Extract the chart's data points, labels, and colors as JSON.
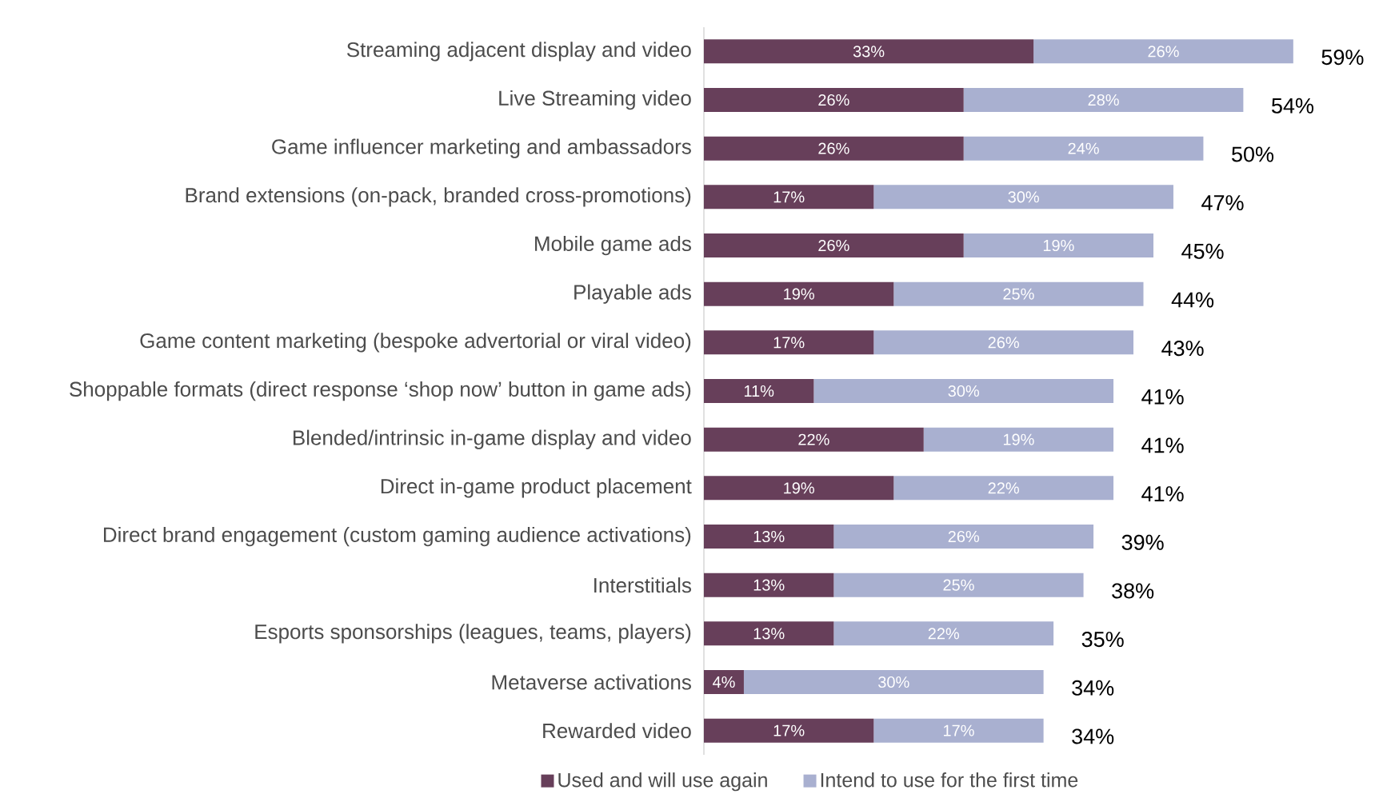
{
  "chart_data": {
    "type": "bar",
    "orientation": "horizontal",
    "stacked": true,
    "legend": "bottom",
    "categories": [
      "Streaming adjacent display and video",
      "Live Streaming video",
      "Game influencer marketing and ambassadors",
      "Brand extensions (on-pack, branded cross-promotions)",
      "Mobile game ads",
      "Playable ads",
      "Game content marketing (bespoke advertorial or viral video)",
      "Shoppable formats (direct response ‘shop now’ button in game ads)",
      "Blended/intrinsic in-game display and video",
      "Direct in-game product placement",
      "Direct brand engagement (custom gaming audience activations)",
      "Interstitials",
      "Esports sponsorships (leagues, teams, players)",
      "Metaverse activations",
      "Rewarded video"
    ],
    "series": [
      {
        "name": "Used and will use again",
        "color": "#673f5a",
        "values": [
          33,
          26,
          26,
          17,
          26,
          19,
          17,
          11,
          22,
          19,
          13,
          13,
          13,
          4,
          17
        ],
        "value_labels": [
          "33%",
          "26%",
          "26%",
          "17%",
          "26%",
          "19%",
          "17%",
          "11%",
          "22%",
          "19%",
          "13%",
          "13%",
          "13%",
          "4%",
          "17%"
        ]
      },
      {
        "name": "Intend to use for the first time",
        "color": "#a9b0d0",
        "values": [
          26,
          28,
          24,
          30,
          19,
          25,
          26,
          30,
          19,
          22,
          26,
          25,
          22,
          30,
          17
        ],
        "value_labels": [
          "26%",
          "28%",
          "24%",
          "30%",
          "19%",
          "25%",
          "26%",
          "30%",
          "19%",
          "22%",
          "26%",
          "25%",
          "22%",
          "30%",
          "17%"
        ]
      }
    ],
    "totals": [
      "59%",
      "54%",
      "50%",
      "47%",
      "45%",
      "44%",
      "43%",
      "41%",
      "41%",
      "41%",
      "39%",
      "38%",
      "35%",
      "34%",
      "34%"
    ]
  }
}
